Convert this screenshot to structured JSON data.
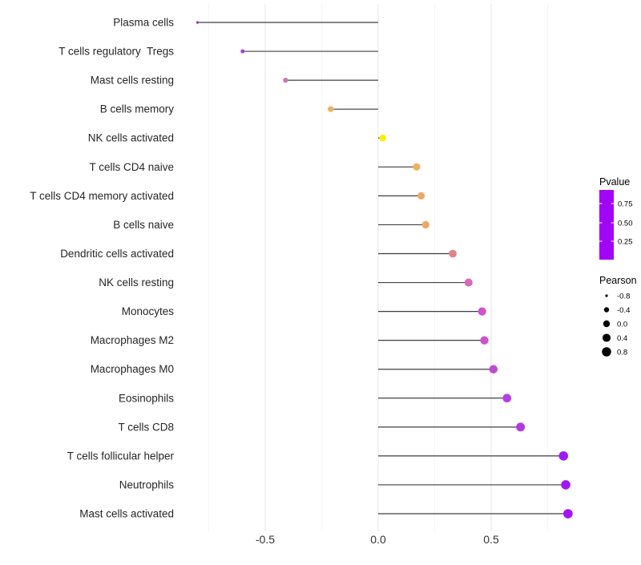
{
  "chart_data": {
    "type": "scatter",
    "variant": "lollipop",
    "title": "",
    "xlabel": "",
    "ylabel": "",
    "xlim": [
      -0.887,
      0.922
    ],
    "x_ticks": [
      {
        "value": -0.5,
        "label": "-0.5"
      },
      {
        "value": 0.0,
        "label": "0.0"
      },
      {
        "value": 0.5,
        "label": "0.5"
      }
    ],
    "grid": {
      "major_x": [
        -0.5,
        0.0,
        0.5
      ],
      "minor_x": [
        -0.75,
        -0.25,
        0.25,
        0.75
      ]
    },
    "points": [
      {
        "label": "Plasma cells",
        "pearson": -0.8,
        "color": "#9a2fc9"
      },
      {
        "label": "T cells regulatory  Tregs",
        "pearson": -0.6,
        "color": "#a83ed2"
      },
      {
        "label": "Mast cells resting",
        "pearson": -0.41,
        "color": "#cb77ba"
      },
      {
        "label": "B cells memory",
        "pearson": -0.21,
        "color": "#edb166"
      },
      {
        "label": "NK cells activated",
        "pearson": 0.02,
        "color": "#f9ee06"
      },
      {
        "label": "T cells CD4 naive",
        "pearson": 0.17,
        "color": "#edb065"
      },
      {
        "label": "T cells CD4 memory activated",
        "pearson": 0.19,
        "color": "#eba96a"
      },
      {
        "label": "B cells naive",
        "pearson": 0.21,
        "color": "#eca864"
      },
      {
        "label": "Dendritic cells activated",
        "pearson": 0.33,
        "color": "#e2838e"
      },
      {
        "label": "NK cells resting",
        "pearson": 0.4,
        "color": "#d66cba"
      },
      {
        "label": "Monocytes",
        "pearson": 0.46,
        "color": "#cd55cd"
      },
      {
        "label": "Macrophages M2",
        "pearson": 0.47,
        "color": "#ca52cf"
      },
      {
        "label": "Macrophages M0",
        "pearson": 0.51,
        "color": "#c149d7"
      },
      {
        "label": "Eosinophils",
        "pearson": 0.57,
        "color": "#b840e2"
      },
      {
        "label": "T cells CD8",
        "pearson": 0.63,
        "color": "#b338e5"
      },
      {
        "label": "T cells follicular helper",
        "pearson": 0.82,
        "color": "#a01bf2"
      },
      {
        "label": "Neutrophils",
        "pearson": 0.83,
        "color": "#9f18f2"
      },
      {
        "label": "Mast cells activated",
        "pearson": 0.84,
        "color": "#a314f3"
      }
    ],
    "legend_pvalue": {
      "title": "Pvalue",
      "ticks": [
        {
          "frac_from_bottom": 0.805,
          "label": "0.75"
        },
        {
          "frac_from_bottom": 0.529,
          "label": "0.50"
        },
        {
          "frac_from_bottom": 0.264,
          "label": "0.25"
        }
      ],
      "gradient_bottom_to_top": [
        {
          "offset": 0.0,
          "color": "#a204f4"
        },
        {
          "offset": 0.13,
          "color": "#b637e3"
        },
        {
          "offset": 0.264,
          "color": "#c95fd8"
        },
        {
          "offset": 0.4,
          "color": "#d77fbd"
        },
        {
          "offset": 0.529,
          "color": "#e295a1"
        },
        {
          "offset": 0.66,
          "color": "#ecaf82"
        },
        {
          "offset": 0.805,
          "color": "#f3c464"
        },
        {
          "offset": 0.92,
          "color": "#f7e23c"
        },
        {
          "offset": 1.0,
          "color": "#f9f227"
        }
      ]
    },
    "legend_pearson": {
      "title": "Pearson",
      "entries": [
        {
          "value": -0.8,
          "label": "-0.8"
        },
        {
          "value": -0.4,
          "label": "-0.4"
        },
        {
          "value": 0.0,
          "label": "0.0"
        },
        {
          "value": 0.4,
          "label": "0.4"
        },
        {
          "value": 0.8,
          "label": "0.8"
        }
      ]
    },
    "style": {
      "background": "#ffffff",
      "grid_major": "#e8e8e8",
      "grid_minor": "#f5f5f5",
      "stem_color": "#3f3f3f",
      "axis_text_color": "#262626",
      "tick_text_color": "#333333"
    }
  }
}
